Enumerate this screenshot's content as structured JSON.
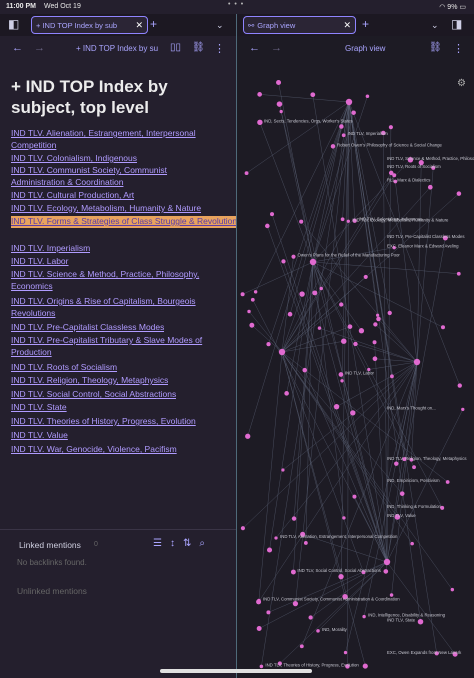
{
  "status": {
    "time": "11:00 PM",
    "date": "Wed Oct 19",
    "battery": "9%"
  },
  "tabs": {
    "left": {
      "label": "+ IND TOP Index by sub"
    },
    "right": {
      "label": "Graph view"
    }
  },
  "left_pane": {
    "nav_title": "+ IND TOP Index by su",
    "title": "+ IND TOP Index by subject, top level",
    "links": [
      "IND TLV. Alienation, Estrangement, Interpersonal Competition",
      "IND TLV. Colonialism, Indigenous",
      "IND TLV. Communist Society, Communist Administration & Coordination",
      "IND TLV. Cultural Production, Art",
      "IND TLV. Ecology, Metabolism, Humanity & Nature",
      "IND TLV. Forms & Strategies of Class Struggle & Revolution",
      "IND TLV. Imperialism",
      "IND TLV. Labor",
      "IND TLV. Science & Method, Practice, Philosophy, Economics",
      "IND TLV. Origins & Rise of Capitalism, Bourgeois Revolutions",
      "IND TLV. Pre-Capitalist Classless Modes",
      "IND TLV. Pre-Capitalist Tributary & Slave Modes of Production",
      "IND TLV. Roots of Socialism",
      "IND TLV. Religion, Theology, Metaphysics",
      "IND TLV. Social Control, Social Abstractions",
      "IND TLV. State",
      "IND TLV. Theories of History, Progress, Evolution",
      "IND TLV. Value",
      "IND TLV. War, Genocide, Violence, Pacifism"
    ],
    "linked_mentions_label": "Linked mentions",
    "linked_mentions_count": "0",
    "no_backlinks": "No backlinks found.",
    "unlinked_mentions_label": "Unlinked mentions"
  },
  "graph": {
    "title": "Graph view",
    "node_labels": [
      "IND TLV, Communist Society, Communist Administration & Coordination",
      "IND TLV, Colonialism, Indigenous",
      "EXC, Owen Expands from New Lanark",
      "EXC, Eleanor Marx & Edward Aveling",
      "IND TLV, Alienation, Estrangement, Interpersonal Competition",
      "IND TLV, Ecology, Metabolism, Humanity & Nature",
      "IND TLV, Imperialism",
      "IND TLV, Labor",
      "IND TLV, Science & Method, Practice, Philosophy, Economics",
      "IND TLV, Religion, Theology, Metaphysics",
      "IND TLV, Value",
      "IND TLV, Theories of History, Progress, Evolution",
      "IND TLV, Pre-Capitalist Classless Modes",
      "IND TLV, Social Control, Social Abstractions",
      "IND TLV, Roots of Socialism",
      "Owen's Plans for the Relief of the Manufacturing Poor",
      "Robert Owen's Philosophy of Science & Social Change",
      "IND, Morality",
      "IND, Sects, Tendencies, Orgs, Worker's States",
      "IND, Intelligence, Disability & Reasoning",
      "IND, Empiricism, Positivism",
      "IND TLV, State",
      "IND, Marx's Thought on...",
      "IND, Thinking & Formulation",
      "RLL, Marx & Dialectics"
    ],
    "accent_color": "#e06ad0",
    "edge_color": "#5a6275"
  },
  "theme": {
    "accent": "#aaa5ff",
    "link": "#b09bff",
    "highlight": "#e8a35e"
  }
}
